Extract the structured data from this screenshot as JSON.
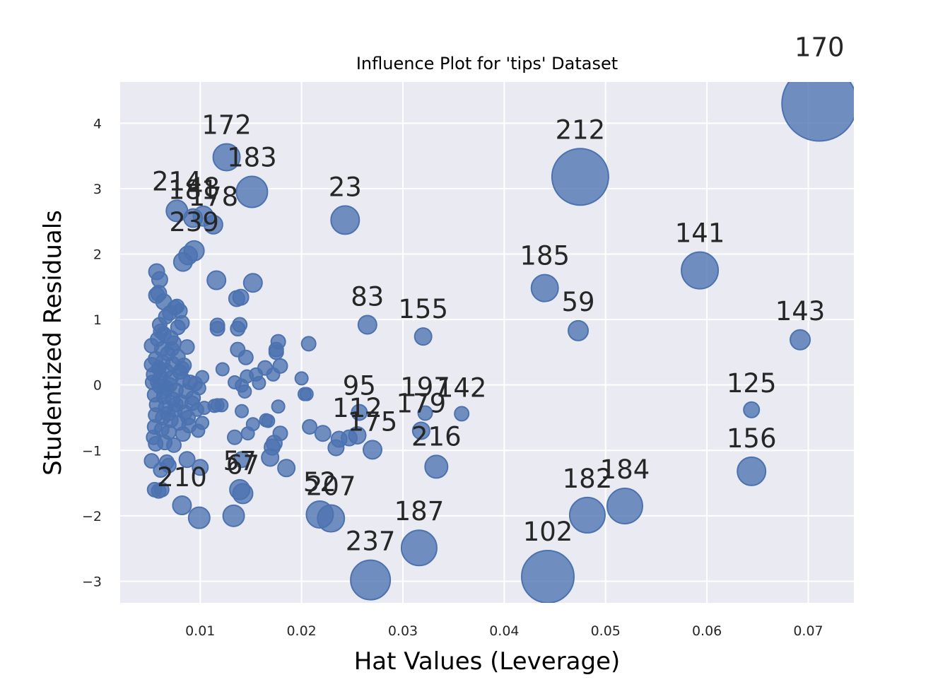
{
  "accent_color": "#4c72b0",
  "plot_background": "#eaeaf2",
  "chart_data": {
    "type": "scatter",
    "title": "Influence Plot for 'tips' Dataset",
    "xlabel": "Hat Values (Leverage)",
    "ylabel": "Studentized Residuals",
    "xlim": [
      0.0021,
      0.0745
    ],
    "ylim": [
      -3.33,
      4.63
    ],
    "grid": true,
    "xticks": [
      {
        "value": 0.01,
        "label": "0.01"
      },
      {
        "value": 0.02,
        "label": "0.02"
      },
      {
        "value": 0.03,
        "label": "0.03"
      },
      {
        "value": 0.04,
        "label": "0.04"
      },
      {
        "value": 0.05,
        "label": "0.05"
      },
      {
        "value": 0.06,
        "label": "0.06"
      },
      {
        "value": 0.07,
        "label": "0.07"
      }
    ],
    "yticks": [
      {
        "value": -3,
        "label": "−3"
      },
      {
        "value": -2,
        "label": "−2"
      },
      {
        "value": -1,
        "label": "−1"
      },
      {
        "value": 0,
        "label": "0"
      },
      {
        "value": 1,
        "label": "1"
      },
      {
        "value": 2,
        "label": "2"
      },
      {
        "value": 3,
        "label": "3"
      },
      {
        "value": 4,
        "label": "4"
      }
    ],
    "labeled_points": [
      {
        "label": "170",
        "x": 0.0711,
        "y": 4.3
      },
      {
        "label": "212",
        "x": 0.0475,
        "y": 3.18
      },
      {
        "label": "172",
        "x": 0.0126,
        "y": 3.48
      },
      {
        "label": "183",
        "x": 0.0151,
        "y": 2.95
      },
      {
        "label": "23",
        "x": 0.0243,
        "y": 2.52
      },
      {
        "label": "214",
        "x": 0.0077,
        "y": 2.66
      },
      {
        "label": "181",
        "x": 0.0093,
        "y": 2.55
      },
      {
        "label": "48",
        "x": 0.0103,
        "y": 2.58
      },
      {
        "label": "178",
        "x": 0.0113,
        "y": 2.45
      },
      {
        "label": "239",
        "x": 0.0094,
        "y": 2.05
      },
      {
        "label": "141",
        "x": 0.0593,
        "y": 1.75
      },
      {
        "label": "185",
        "x": 0.044,
        "y": 1.48
      },
      {
        "label": "59",
        "x": 0.0473,
        "y": 0.83
      },
      {
        "label": "83",
        "x": 0.0265,
        "y": 0.92
      },
      {
        "label": "155",
        "x": 0.032,
        "y": 0.74
      },
      {
        "label": "143",
        "x": 0.0692,
        "y": 0.69
      },
      {
        "label": "95",
        "x": 0.0257,
        "y": -0.42
      },
      {
        "label": "197",
        "x": 0.0322,
        "y": -0.43
      },
      {
        "label": "142",
        "x": 0.0358,
        "y": -0.44
      },
      {
        "label": "112",
        "x": 0.0255,
        "y": -0.77
      },
      {
        "label": "179",
        "x": 0.0318,
        "y": -0.7
      },
      {
        "label": "175",
        "x": 0.027,
        "y": -0.99
      },
      {
        "label": "216",
        "x": 0.0333,
        "y": -1.25
      },
      {
        "label": "125",
        "x": 0.0644,
        "y": -0.38
      },
      {
        "label": "156",
        "x": 0.0644,
        "y": -1.32
      },
      {
        "label": "182",
        "x": 0.0482,
        "y": -1.99
      },
      {
        "label": "184",
        "x": 0.0519,
        "y": -1.85
      },
      {
        "label": "210",
        "x": 0.0082,
        "y": -1.84
      },
      {
        "label": "57",
        "x": 0.0139,
        "y": -1.6
      },
      {
        "label": "67",
        "x": 0.0142,
        "y": -1.66
      },
      {
        "label": "52",
        "x": 0.0218,
        "y": -1.98
      },
      {
        "label": "207",
        "x": 0.0229,
        "y": -2.04
      },
      {
        "label": "187",
        "x": 0.0316,
        "y": -2.49
      },
      {
        "label": "237",
        "x": 0.0268,
        "y": -2.98
      },
      {
        "label": "102",
        "x": 0.0443,
        "y": -2.93
      }
    ],
    "points": [
      {
        "x": 0.0711,
        "y": 4.3,
        "size": 53
      },
      {
        "x": 0.0475,
        "y": 3.18,
        "size": 40
      },
      {
        "x": 0.0126,
        "y": 3.48,
        "size": 19
      },
      {
        "x": 0.0151,
        "y": 2.95,
        "size": 22
      },
      {
        "x": 0.0243,
        "y": 2.52,
        "size": 20
      },
      {
        "x": 0.0077,
        "y": 2.66,
        "size": 15
      },
      {
        "x": 0.0093,
        "y": 2.55,
        "size": 13
      },
      {
        "x": 0.0103,
        "y": 2.58,
        "size": 14
      },
      {
        "x": 0.0113,
        "y": 2.45,
        "size": 13
      },
      {
        "x": 0.0094,
        "y": 2.05,
        "size": 14
      },
      {
        "x": 0.0083,
        "y": 1.88,
        "size": 13
      },
      {
        "x": 0.0088,
        "y": 1.98,
        "size": 13
      },
      {
        "x": 0.0593,
        "y": 1.75,
        "size": 26
      },
      {
        "x": 0.044,
        "y": 1.48,
        "size": 19
      },
      {
        "x": 0.0473,
        "y": 0.83,
        "size": 14
      },
      {
        "x": 0.0265,
        "y": 0.92,
        "size": 13
      },
      {
        "x": 0.032,
        "y": 0.74,
        "size": 12
      },
      {
        "x": 0.0692,
        "y": 0.69,
        "size": 14
      },
      {
        "x": 0.0257,
        "y": -0.42,
        "size": 11
      },
      {
        "x": 0.0322,
        "y": -0.43,
        "size": 10
      },
      {
        "x": 0.0358,
        "y": -0.44,
        "size": 10
      },
      {
        "x": 0.0255,
        "y": -0.77,
        "size": 12
      },
      {
        "x": 0.0318,
        "y": -0.7,
        "size": 12
      },
      {
        "x": 0.027,
        "y": -0.99,
        "size": 13
      },
      {
        "x": 0.0333,
        "y": -1.25,
        "size": 16
      },
      {
        "x": 0.0644,
        "y": -0.38,
        "size": 11
      },
      {
        "x": 0.0644,
        "y": -1.32,
        "size": 20
      },
      {
        "x": 0.0482,
        "y": -1.99,
        "size": 25
      },
      {
        "x": 0.0519,
        "y": -1.85,
        "size": 25
      },
      {
        "x": 0.0082,
        "y": -1.84,
        "size": 13
      },
      {
        "x": 0.0099,
        "y": -2.03,
        "size": 15
      },
      {
        "x": 0.0139,
        "y": -1.6,
        "size": 14
      },
      {
        "x": 0.0142,
        "y": -1.66,
        "size": 14
      },
      {
        "x": 0.0133,
        "y": -2.0,
        "size": 15
      },
      {
        "x": 0.0218,
        "y": -1.98,
        "size": 19
      },
      {
        "x": 0.0229,
        "y": -2.04,
        "size": 19
      },
      {
        "x": 0.0316,
        "y": -2.49,
        "size": 25
      },
      {
        "x": 0.0268,
        "y": -2.98,
        "size": 28
      },
      {
        "x": 0.0443,
        "y": -2.93,
        "size": 37
      },
      {
        "x": 0.0116,
        "y": 1.6,
        "size": 13
      },
      {
        "x": 0.0152,
        "y": 1.56,
        "size": 13
      },
      {
        "x": 0.0136,
        "y": 1.32,
        "size": 11
      },
      {
        "x": 0.014,
        "y": 1.34,
        "size": 11
      },
      {
        "x": 0.0117,
        "y": 0.91,
        "size": 10
      },
      {
        "x": 0.0117,
        "y": 0.86,
        "size": 10
      },
      {
        "x": 0.0139,
        "y": 0.92,
        "size": 10
      },
      {
        "x": 0.0137,
        "y": 0.86,
        "size": 10
      },
      {
        "x": 0.0177,
        "y": 0.66,
        "size": 10
      },
      {
        "x": 0.0175,
        "y": 0.54,
        "size": 10
      },
      {
        "x": 0.0175,
        "y": 0.5,
        "size": 10
      },
      {
        "x": 0.0137,
        "y": 0.54,
        "size": 10
      },
      {
        "x": 0.0145,
        "y": 0.42,
        "size": 10
      },
      {
        "x": 0.0164,
        "y": 0.26,
        "size": 10
      },
      {
        "x": 0.0179,
        "y": 0.29,
        "size": 10
      },
      {
        "x": 0.0207,
        "y": 0.63,
        "size": 10
      },
      {
        "x": 0.0122,
        "y": 0.24,
        "size": 9
      },
      {
        "x": 0.0146,
        "y": 0.13,
        "size": 9
      },
      {
        "x": 0.0155,
        "y": 0.16,
        "size": 9
      },
      {
        "x": 0.0172,
        "y": 0.16,
        "size": 9
      },
      {
        "x": 0.0134,
        "y": 0.04,
        "size": 9
      },
      {
        "x": 0.0141,
        "y": -0.01,
        "size": 9
      },
      {
        "x": 0.0144,
        "y": -0.1,
        "size": 9
      },
      {
        "x": 0.0158,
        "y": 0.03,
        "size": 9
      },
      {
        "x": 0.02,
        "y": 0.1,
        "size": 9
      },
      {
        "x": 0.0203,
        "y": -0.14,
        "size": 9
      },
      {
        "x": 0.0205,
        "y": -0.14,
        "size": 9
      },
      {
        "x": 0.0114,
        "y": -0.32,
        "size": 9
      },
      {
        "x": 0.0117,
        "y": -0.31,
        "size": 9
      },
      {
        "x": 0.0121,
        "y": -0.31,
        "size": 9
      },
      {
        "x": 0.0104,
        "y": -0.35,
        "size": 9
      },
      {
        "x": 0.0141,
        "y": -0.4,
        "size": 9
      },
      {
        "x": 0.0165,
        "y": -0.54,
        "size": 9
      },
      {
        "x": 0.0167,
        "y": -0.55,
        "size": 9
      },
      {
        "x": 0.0177,
        "y": -0.33,
        "size": 9
      },
      {
        "x": 0.0208,
        "y": -0.64,
        "size": 10
      },
      {
        "x": 0.0152,
        "y": -0.6,
        "size": 9
      },
      {
        "x": 0.0147,
        "y": -0.74,
        "size": 9
      },
      {
        "x": 0.0179,
        "y": -0.74,
        "size": 10
      },
      {
        "x": 0.0134,
        "y": -0.8,
        "size": 10
      },
      {
        "x": 0.0173,
        "y": -0.89,
        "size": 11
      },
      {
        "x": 0.0171,
        "y": -0.95,
        "size": 11
      },
      {
        "x": 0.0169,
        "y": -1.11,
        "size": 12
      },
      {
        "x": 0.0185,
        "y": -1.27,
        "size": 12
      },
      {
        "x": 0.0221,
        "y": -0.74,
        "size": 11
      },
      {
        "x": 0.0141,
        "y": -1.14,
        "size": 11
      },
      {
        "x": 0.0237,
        "y": -0.83,
        "size": 11
      },
      {
        "x": 0.0247,
        "y": -0.81,
        "size": 11
      },
      {
        "x": 0.0234,
        "y": -0.96,
        "size": 11
      },
      {
        "x": 0.01,
        "y": -1.26,
        "size": 11
      },
      {
        "x": 0.0102,
        "y": 0.12,
        "size": 9
      },
      {
        "x": 0.0099,
        "y": -0.05,
        "size": 9
      },
      {
        "x": 0.0097,
        "y": -0.38,
        "size": 9
      },
      {
        "x": 0.0102,
        "y": -0.58,
        "size": 9
      },
      {
        "x": 0.0098,
        "y": -0.7,
        "size": 9
      },
      {
        "x": 0.0087,
        "y": -1.14,
        "size": 11
      },
      {
        "x": 0.0057,
        "y": 1.73,
        "size": 11
      },
      {
        "x": 0.006,
        "y": 1.61,
        "size": 11
      },
      {
        "x": 0.0059,
        "y": 1.4,
        "size": 11
      },
      {
        "x": 0.0064,
        "y": 1.27,
        "size": 11
      },
      {
        "x": 0.0057,
        "y": 1.37,
        "size": 11
      },
      {
        "x": 0.0066,
        "y": 1.04,
        "size": 10
      },
      {
        "x": 0.007,
        "y": 1.1,
        "size": 10
      },
      {
        "x": 0.0077,
        "y": 1.2,
        "size": 10
      },
      {
        "x": 0.0075,
        "y": 1.18,
        "size": 10
      },
      {
        "x": 0.008,
        "y": 1.13,
        "size": 10
      },
      {
        "x": 0.0082,
        "y": 0.95,
        "size": 10
      },
      {
        "x": 0.0078,
        "y": 0.88,
        "size": 10
      },
      {
        "x": 0.006,
        "y": 0.92,
        "size": 10
      },
      {
        "x": 0.0064,
        "y": 0.78,
        "size": 10
      },
      {
        "x": 0.0071,
        "y": 0.72,
        "size": 10
      },
      {
        "x": 0.0058,
        "y": 0.7,
        "size": 10
      },
      {
        "x": 0.0074,
        "y": 0.64,
        "size": 10
      },
      {
        "x": 0.0087,
        "y": 0.58,
        "size": 10
      },
      {
        "x": 0.0052,
        "y": 0.6,
        "size": 10
      },
      {
        "x": 0.0062,
        "y": 0.55,
        "size": 10
      },
      {
        "x": 0.0068,
        "y": 0.48,
        "size": 10
      },
      {
        "x": 0.0078,
        "y": 0.43,
        "size": 10
      },
      {
        "x": 0.0056,
        "y": 0.4,
        "size": 10
      },
      {
        "x": 0.0063,
        "y": 0.35,
        "size": 10
      },
      {
        "x": 0.0073,
        "y": 0.32,
        "size": 10
      },
      {
        "x": 0.0084,
        "y": 0.3,
        "size": 10
      },
      {
        "x": 0.0052,
        "y": 0.31,
        "size": 10
      },
      {
        "x": 0.0059,
        "y": 0.26,
        "size": 10
      },
      {
        "x": 0.0066,
        "y": 0.22,
        "size": 10
      },
      {
        "x": 0.008,
        "y": 0.2,
        "size": 10
      },
      {
        "x": 0.0054,
        "y": 0.16,
        "size": 10
      },
      {
        "x": 0.0061,
        "y": 0.12,
        "size": 10
      },
      {
        "x": 0.0071,
        "y": 0.1,
        "size": 10
      },
      {
        "x": 0.0083,
        "y": 0.08,
        "size": 10
      },
      {
        "x": 0.009,
        "y": 0.04,
        "size": 10
      },
      {
        "x": 0.0053,
        "y": 0.04,
        "size": 10
      },
      {
        "x": 0.006,
        "y": -0.02,
        "size": 10
      },
      {
        "x": 0.0067,
        "y": -0.05,
        "size": 10
      },
      {
        "x": 0.0076,
        "y": -0.08,
        "size": 10
      },
      {
        "x": 0.0086,
        "y": -0.1,
        "size": 10
      },
      {
        "x": 0.0055,
        "y": -0.15,
        "size": 10
      },
      {
        "x": 0.0064,
        "y": -0.18,
        "size": 10
      },
      {
        "x": 0.0073,
        "y": -0.22,
        "size": 10
      },
      {
        "x": 0.0081,
        "y": -0.26,
        "size": 10
      },
      {
        "x": 0.0092,
        "y": -0.28,
        "size": 10
      },
      {
        "x": 0.0057,
        "y": -0.3,
        "size": 10
      },
      {
        "x": 0.0066,
        "y": -0.34,
        "size": 10
      },
      {
        "x": 0.0075,
        "y": -0.38,
        "size": 10
      },
      {
        "x": 0.0085,
        "y": -0.42,
        "size": 10
      },
      {
        "x": 0.0056,
        "y": -0.46,
        "size": 10
      },
      {
        "x": 0.0063,
        "y": -0.5,
        "size": 10
      },
      {
        "x": 0.0071,
        "y": -0.54,
        "size": 10
      },
      {
        "x": 0.0079,
        "y": -0.58,
        "size": 10
      },
      {
        "x": 0.0089,
        "y": -0.62,
        "size": 10
      },
      {
        "x": 0.0055,
        "y": -0.64,
        "size": 10
      },
      {
        "x": 0.0062,
        "y": -0.68,
        "size": 10
      },
      {
        "x": 0.0069,
        "y": -0.72,
        "size": 10
      },
      {
        "x": 0.0083,
        "y": -0.75,
        "size": 10
      },
      {
        "x": 0.0056,
        "y": -0.9,
        "size": 10
      },
      {
        "x": 0.0065,
        "y": -0.88,
        "size": 10
      },
      {
        "x": 0.0074,
        "y": -0.92,
        "size": 10
      },
      {
        "x": 0.0052,
        "y": -1.16,
        "size": 10
      },
      {
        "x": 0.0061,
        "y": -1.3,
        "size": 10
      },
      {
        "x": 0.0067,
        "y": -1.18,
        "size": 10
      },
      {
        "x": 0.0069,
        "y": -1.23,
        "size": 10
      },
      {
        "x": 0.0055,
        "y": -1.6,
        "size": 10
      },
      {
        "x": 0.0059,
        "y": -1.62,
        "size": 10
      },
      {
        "x": 0.0062,
        "y": -1.6,
        "size": 10
      },
      {
        "x": 0.0058,
        "y": 0.05,
        "size": 10
      },
      {
        "x": 0.0064,
        "y": -0.1,
        "size": 10
      },
      {
        "x": 0.007,
        "y": 0.0,
        "size": 10
      },
      {
        "x": 0.0076,
        "y": -0.3,
        "size": 10
      },
      {
        "x": 0.0068,
        "y": -0.44,
        "size": 10
      },
      {
        "x": 0.0082,
        "y": 0.25,
        "size": 10
      },
      {
        "x": 0.0088,
        "y": -0.5,
        "size": 10
      },
      {
        "x": 0.0072,
        "y": 0.55,
        "size": 10
      },
      {
        "x": 0.0061,
        "y": 0.82,
        "size": 10
      },
      {
        "x": 0.0054,
        "y": -0.8,
        "size": 10
      },
      {
        "x": 0.0093,
        "y": -0.2,
        "size": 10
      },
      {
        "x": 0.0095,
        "y": 0.02,
        "size": 10
      }
    ]
  }
}
